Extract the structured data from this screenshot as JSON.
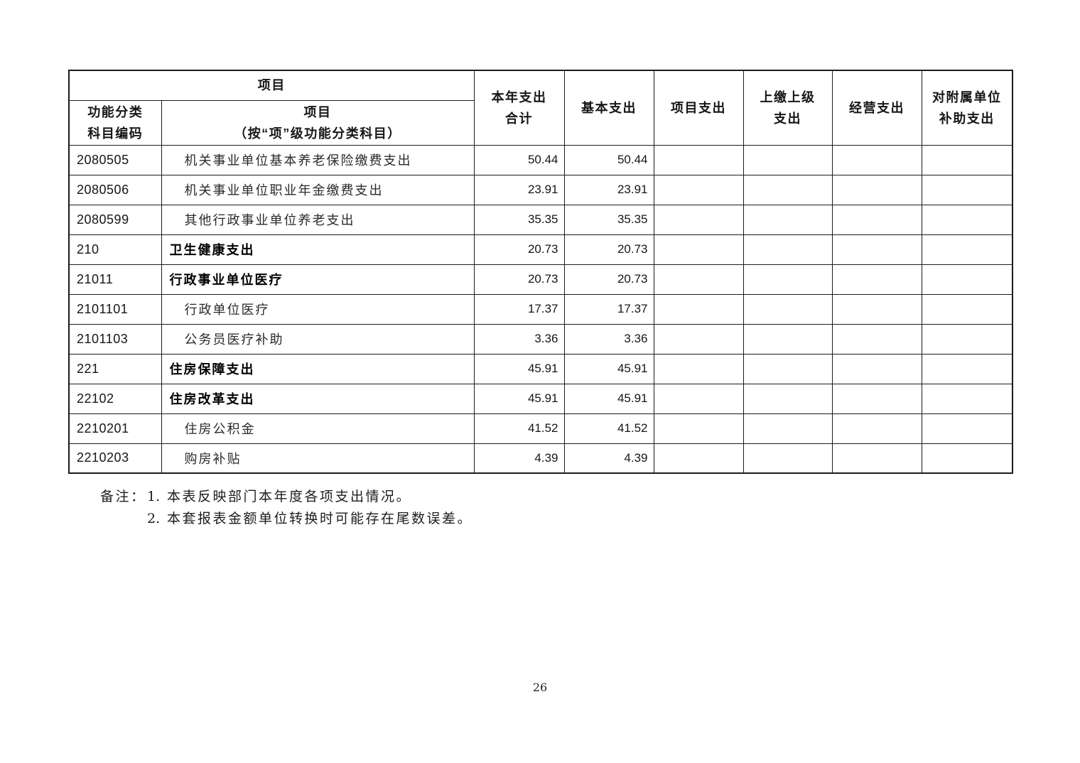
{
  "page": {
    "number": "26",
    "background_color": "#ffffff",
    "border_color": "#1c1c1c"
  },
  "table": {
    "header": {
      "group_label": "项目",
      "columns": [
        {
          "id": "code",
          "label": "功能分类\n科目编码"
        },
        {
          "id": "name",
          "label": "项目\n（按“项”级功能分类科目）"
        },
        {
          "id": "total",
          "label": "本年支出\n合计"
        },
        {
          "id": "basic",
          "label": "基本支出"
        },
        {
          "id": "project",
          "label": "项目支出"
        },
        {
          "id": "upper",
          "label": "上缴上级\n支出"
        },
        {
          "id": "operating",
          "label": "经营支出"
        },
        {
          "id": "subsidy",
          "label": "对附属单位\n补助支出"
        }
      ]
    },
    "rows": [
      {
        "code": "2080505",
        "name": "机关事业单位基本养老保险缴费支出",
        "bold": false,
        "total": "50.44",
        "basic": "50.44",
        "project": "",
        "upper": "",
        "operating": "",
        "subsidy": ""
      },
      {
        "code": "2080506",
        "name": "机关事业单位职业年金缴费支出",
        "bold": false,
        "total": "23.91",
        "basic": "23.91",
        "project": "",
        "upper": "",
        "operating": "",
        "subsidy": ""
      },
      {
        "code": "2080599",
        "name": "其他行政事业单位养老支出",
        "bold": false,
        "total": "35.35",
        "basic": "35.35",
        "project": "",
        "upper": "",
        "operating": "",
        "subsidy": ""
      },
      {
        "code": "210",
        "name": "卫生健康支出",
        "bold": true,
        "total": "20.73",
        "basic": "20.73",
        "project": "",
        "upper": "",
        "operating": "",
        "subsidy": ""
      },
      {
        "code": "21011",
        "name": "行政事业单位医疗",
        "bold": true,
        "total": "20.73",
        "basic": "20.73",
        "project": "",
        "upper": "",
        "operating": "",
        "subsidy": ""
      },
      {
        "code": "2101101",
        "name": "行政单位医疗",
        "bold": false,
        "total": "17.37",
        "basic": "17.37",
        "project": "",
        "upper": "",
        "operating": "",
        "subsidy": ""
      },
      {
        "code": "2101103",
        "name": "公务员医疗补助",
        "bold": false,
        "total": "3.36",
        "basic": "3.36",
        "project": "",
        "upper": "",
        "operating": "",
        "subsidy": ""
      },
      {
        "code": "221",
        "name": "住房保障支出",
        "bold": true,
        "total": "45.91",
        "basic": "45.91",
        "project": "",
        "upper": "",
        "operating": "",
        "subsidy": ""
      },
      {
        "code": "22102",
        "name": "住房改革支出",
        "bold": true,
        "total": "45.91",
        "basic": "45.91",
        "project": "",
        "upper": "",
        "operating": "",
        "subsidy": ""
      },
      {
        "code": "2210201",
        "name": "住房公积金",
        "bold": false,
        "total": "41.52",
        "basic": "41.52",
        "project": "",
        "upper": "",
        "operating": "",
        "subsidy": ""
      },
      {
        "code": "2210203",
        "name": "购房补贴",
        "bold": false,
        "total": "4.39",
        "basic": "4.39",
        "project": "",
        "upper": "",
        "operating": "",
        "subsidy": ""
      }
    ]
  },
  "notes": {
    "label": "备注：",
    "items": [
      {
        "num": "1.",
        "text": "本表反映部门本年度各项支出情况。"
      },
      {
        "num": "2.",
        "text": "本套报表金额单位转换时可能存在尾数误差。"
      }
    ]
  }
}
